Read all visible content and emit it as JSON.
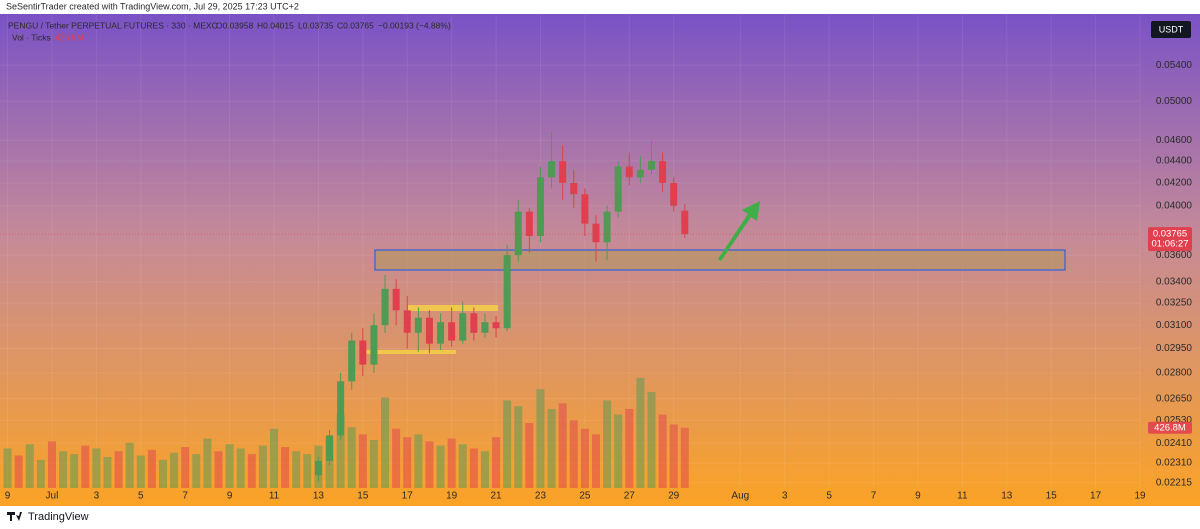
{
  "chart_data": {
    "type": "candlestick",
    "watermark": "SeSentirTrader created with TradingView.com, Jul 29, 2025 17:23 UTC+2",
    "symbol": "PENGU / Tether PERPETUAL FUTURES · 330 · MEXC",
    "ohlc_text": [
      "O0.03958",
      "H0.04015",
      "L0.03735",
      "C0.03765",
      "−0.00193 (−4.88%)"
    ],
    "volume_legend": "Vol · Ticks",
    "currency": "USDT",
    "last_price_label": "0.03765",
    "countdown": "01:06:27",
    "brand": "TradingView",
    "log_scale": true,
    "up_color": "#4f9a55",
    "down_color": "#e0404e",
    "xlim": [
      -1.34,
      50
    ],
    "xticks": [
      {
        "value": -1,
        "label": "9"
      },
      {
        "value": 1,
        "label": "Jul"
      },
      3,
      5,
      7,
      9,
      11,
      13,
      15,
      17,
      19,
      21,
      23,
      25,
      27,
      29,
      {
        "value": 32,
        "label": "Aug"
      },
      {
        "value": 34,
        "label": "3"
      },
      {
        "value": 36,
        "label": "5"
      },
      {
        "value": 38,
        "label": "7"
      },
      {
        "value": 40,
        "label": "9"
      },
      {
        "value": 42,
        "label": "11"
      },
      {
        "value": 44,
        "label": "13"
      },
      {
        "value": 46,
        "label": "15"
      },
      {
        "value": 48,
        "label": "17"
      },
      {
        "value": 50,
        "label": "19"
      }
    ],
    "ylim": [
      0.0219,
      0.0601
    ],
    "yticks": [
      {
        "value": 0.054,
        "label": "0.05400"
      },
      {
        "value": 0.05,
        "label": "0.05000"
      },
      {
        "value": 0.046,
        "label": "0.04600"
      },
      {
        "value": 0.044,
        "label": "0.04400"
      },
      {
        "value": 0.042,
        "label": "0.04200"
      },
      {
        "value": 0.04,
        "label": "0.04000"
      },
      {
        "value": 0.036,
        "label": "0.03600"
      },
      {
        "value": 0.034,
        "label": "0.03400"
      },
      {
        "value": 0.0325,
        "label": "0.03250"
      },
      {
        "value": 0.031,
        "label": "0.03100"
      },
      {
        "value": 0.0295,
        "label": "0.02950"
      },
      {
        "value": 0.028,
        "label": "0.02800"
      },
      {
        "value": 0.0265,
        "label": "0.02650"
      },
      {
        "value": 0.0253,
        "label": "0.02530"
      },
      {
        "value": 0.0241,
        "label": "0.02410"
      },
      {
        "value": 0.0231,
        "label": "0.02310"
      },
      {
        "value": 0.02215,
        "label": "0.02215"
      }
    ],
    "candles": {
      "x": [
        13,
        13.5,
        14,
        14.5,
        15,
        15.5,
        16,
        16.5,
        17,
        17.5,
        18,
        18.5,
        19,
        19.5,
        20,
        20.5,
        21,
        21.5,
        22,
        22.5,
        23,
        23.5,
        24,
        24.5,
        25,
        25.5,
        26,
        26.5,
        27,
        27.5,
        28,
        28.5,
        29,
        29.5
      ],
      "open": [
        0.0225,
        0.0232,
        0.0245,
        0.0275,
        0.03,
        0.0285,
        0.031,
        0.0335,
        0.032,
        0.0305,
        0.0315,
        0.0298,
        0.0312,
        0.03,
        0.0318,
        0.0305,
        0.0312,
        0.0308,
        0.036,
        0.0395,
        0.0375,
        0.0425,
        0.044,
        0.042,
        0.041,
        0.0385,
        0.037,
        0.0395,
        0.0435,
        0.0425,
        0.0432,
        0.044,
        0.042,
        0.03958
      ],
      "high": [
        0.0234,
        0.0248,
        0.028,
        0.0305,
        0.0308,
        0.0318,
        0.0345,
        0.0342,
        0.033,
        0.0322,
        0.032,
        0.0318,
        0.0322,
        0.0326,
        0.0322,
        0.0318,
        0.0316,
        0.0368,
        0.0405,
        0.0398,
        0.0435,
        0.0468,
        0.0455,
        0.0432,
        0.0415,
        0.0392,
        0.04,
        0.044,
        0.0448,
        0.0445,
        0.046,
        0.0448,
        0.0425,
        0.04015
      ],
      "low": [
        0.0222,
        0.023,
        0.0243,
        0.027,
        0.0278,
        0.028,
        0.0305,
        0.031,
        0.0295,
        0.0293,
        0.0292,
        0.0294,
        0.0296,
        0.0298,
        0.03,
        0.0302,
        0.0302,
        0.0306,
        0.0355,
        0.0362,
        0.037,
        0.0415,
        0.0405,
        0.0398,
        0.0375,
        0.0355,
        0.0356,
        0.039,
        0.0418,
        0.042,
        0.0428,
        0.0412,
        0.0395,
        0.03735
      ],
      "close": [
        0.0232,
        0.0245,
        0.0275,
        0.03,
        0.0285,
        0.031,
        0.0335,
        0.032,
        0.0305,
        0.0315,
        0.0298,
        0.0312,
        0.03,
        0.0318,
        0.0305,
        0.0312,
        0.0308,
        0.036,
        0.0395,
        0.0375,
        0.0425,
        0.044,
        0.042,
        0.041,
        0.0385,
        0.037,
        0.0395,
        0.0435,
        0.0425,
        0.0432,
        0.044,
        0.042,
        0.04,
        0.03765
      ]
    },
    "volume": {
      "x": [
        -1,
        -0.5,
        0,
        0.5,
        1,
        1.5,
        2,
        2.5,
        3,
        3.5,
        4,
        4.5,
        5,
        5.5,
        6,
        6.5,
        7,
        7.5,
        8,
        8.5,
        9,
        9.5,
        10,
        10.5,
        11,
        11.5,
        12,
        12.5,
        13,
        13.5,
        14,
        14.5,
        15,
        15.5,
        16,
        16.5,
        17,
        17.5,
        18,
        18.5,
        19,
        19.5,
        20,
        20.5,
        21,
        21.5,
        22,
        22.5,
        23,
        23.5,
        24,
        24.5,
        25,
        25.5,
        26,
        26.5,
        27,
        27.5,
        28,
        28.5,
        29,
        29.5
      ],
      "values": [
        280,
        230,
        310,
        200,
        330,
        260,
        240,
        300,
        280,
        220,
        260,
        320,
        230,
        270,
        200,
        250,
        290,
        240,
        350,
        260,
        310,
        280,
        240,
        300,
        420,
        290,
        260,
        240,
        300,
        360,
        520,
        430,
        380,
        340,
        640,
        420,
        360,
        380,
        330,
        300,
        350,
        310,
        280,
        260,
        360,
        620,
        580,
        460,
        700,
        560,
        600,
        480,
        420,
        380,
        620,
        520,
        560,
        780,
        680,
        520,
        450,
        426.8
      ],
      "ylim": [
        0,
        850
      ],
      "last_label": "426.8M"
    }
  }
}
